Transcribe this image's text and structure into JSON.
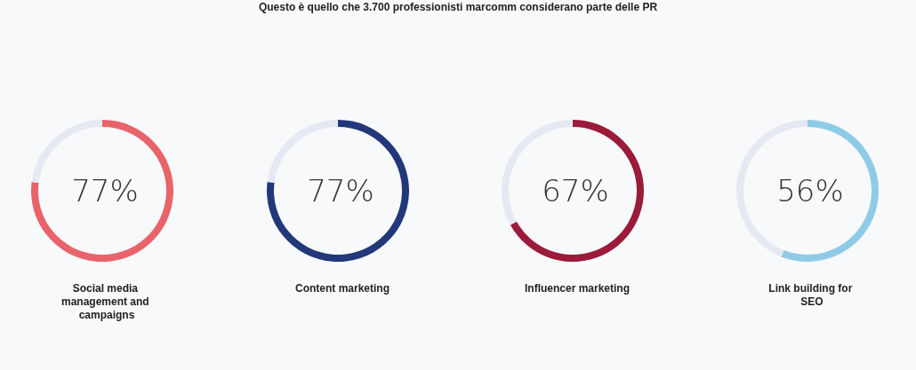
{
  "chart_data": [
    {
      "type": "donut",
      "title": "Questo è quello che 3.700 professionisti marcomm considerano parte delle PR",
      "categories": [
        "Social media management and campaigns",
        null
      ],
      "values": [
        77,
        23
      ],
      "colors": [
        "#e8636a",
        "#e6e9f2"
      ],
      "value_labels": [
        "77%",
        null
      ]
    },
    {
      "type": "donut",
      "categories": [
        "Content marketing",
        null
      ],
      "values": [
        77,
        23
      ],
      "colors": [
        "#22387a",
        "#e6e9f2"
      ],
      "value_labels": [
        "77%",
        null
      ]
    },
    {
      "type": "donut",
      "categories": [
        "Influencer marketing",
        null
      ],
      "values": [
        67,
        33
      ],
      "colors": [
        "#9b1b3a",
        "#e6e9f2"
      ],
      "value_labels": [
        "67%",
        null
      ]
    },
    {
      "type": "donut",
      "categories": [
        "Link building for SEO",
        null
      ],
      "values": [
        56,
        44
      ],
      "colors": [
        "#8fcbe6",
        "#e6e9f2"
      ],
      "value_labels": [
        "56%",
        null
      ]
    }
  ]
}
